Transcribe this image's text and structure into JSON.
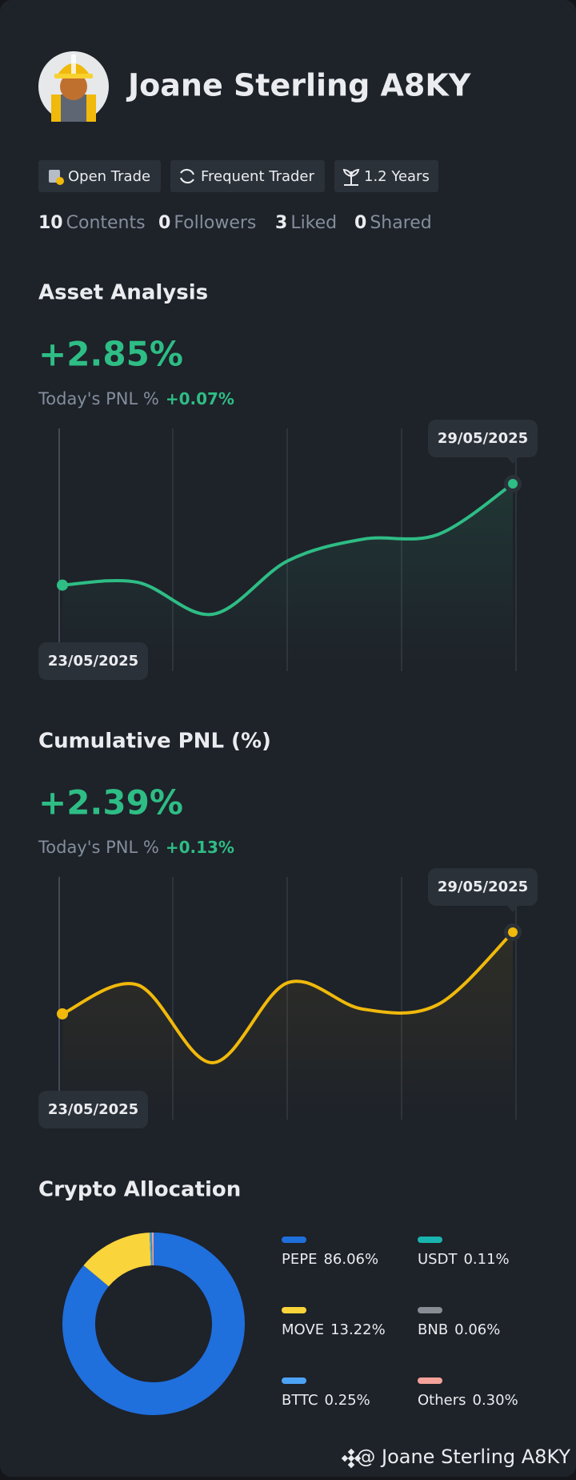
{
  "profile": {
    "name": "Joane Sterling A8KY",
    "tags": [
      "Open Trade",
      "Frequent Trader",
      "1.2 Years"
    ],
    "stats": [
      {
        "value": 10,
        "label": "Contents"
      },
      {
        "value": 0,
        "label": "Followers"
      },
      {
        "value": 3,
        "label": "Liked"
      },
      {
        "value": 0,
        "label": "Shared"
      }
    ]
  },
  "chart_data": [
    {
      "type": "line",
      "title": "Asset Analysis",
      "headline": "+2.85%",
      "subtitle": "Today's PNL %",
      "today_change": "+0.07%",
      "categories": [
        "23/05/2025",
        null,
        null,
        null,
        null,
        null,
        "29/05/2025"
      ],
      "values": [
        0,
        0.08,
        -0.82,
        0.68,
        1.29,
        1.42,
        2.85
      ],
      "color": "#2ebd85"
    },
    {
      "type": "line",
      "title": "Cumulative PNL (%)",
      "headline": "+2.39%",
      "subtitle": "Today's PNL %",
      "today_change": "+0.13%",
      "categories": [
        "23/05/2025",
        null,
        null,
        null,
        null,
        null,
        "29/05/2025"
      ],
      "values": [
        0,
        0.85,
        -1.43,
        0.91,
        0.14,
        0.27,
        2.39
      ],
      "color": "#f0b90b"
    },
    {
      "type": "donut",
      "title": "Crypto Allocation",
      "categories": [
        "PEPE",
        "MOVE",
        "BTTC",
        "USDT",
        "BNB",
        "Others"
      ],
      "values": [
        86.06,
        13.22,
        0.25,
        0.11,
        0.06,
        0.3
      ],
      "value_labels": [
        "86.06%",
        "13.22%",
        "0.25%",
        "0.11%",
        "0.06%",
        "0.30%"
      ],
      "colors": [
        "#1f6fdc",
        "#f9d43a",
        "#4da3f5",
        "#1ab4b0",
        "#888c94",
        "#f4a29a"
      ]
    }
  ],
  "footer": {
    "handle": "@ Joane Sterling A8KY"
  }
}
